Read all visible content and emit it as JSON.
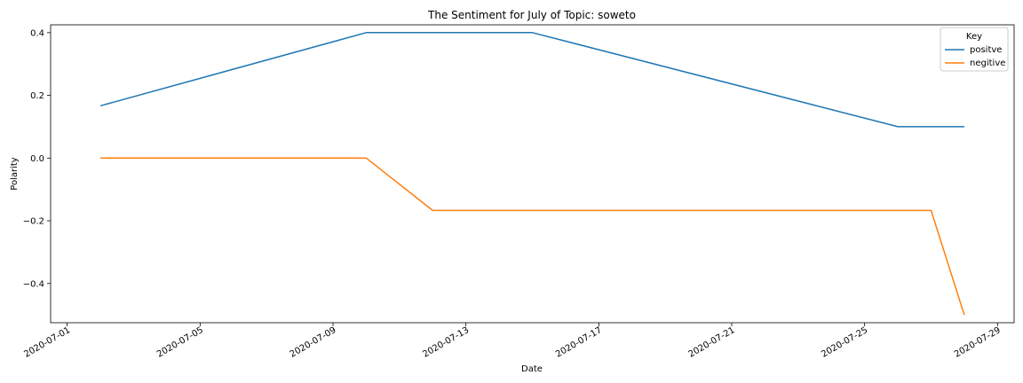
{
  "chart_data": {
    "type": "line",
    "title": "The Sentiment for July of Topic: soweto",
    "xlabel": "Date",
    "ylabel": "Polarity",
    "xlim": [
      "2020-06-30T12:00",
      "2020-07-29T12:00"
    ],
    "ylim": [
      -0.525,
      0.425
    ],
    "xticks": [
      "2020-07-01",
      "2020-07-05",
      "2020-07-09",
      "2020-07-13",
      "2020-07-17",
      "2020-07-21",
      "2020-07-25",
      "2020-07-29"
    ],
    "yticks": [
      -0.4,
      -0.2,
      0.0,
      0.2,
      0.4
    ],
    "ytick_labels": [
      "−0.4",
      "−0.2",
      "0.0",
      "0.2",
      "0.4"
    ],
    "grid": false,
    "legend": {
      "title": "Key",
      "placement": "top-right"
    },
    "series": [
      {
        "name": "positve",
        "color": "#1f77b4",
        "points": [
          {
            "x": "2020-07-02",
            "y": 0.167
          },
          {
            "x": "2020-07-10",
            "y": 0.4
          },
          {
            "x": "2020-07-15",
            "y": 0.4
          },
          {
            "x": "2020-07-26",
            "y": 0.1
          },
          {
            "x": "2020-07-28",
            "y": 0.1
          }
        ]
      },
      {
        "name": "negitive",
        "color": "#ff7f0e",
        "points": [
          {
            "x": "2020-07-02",
            "y": 0.0
          },
          {
            "x": "2020-07-10",
            "y": 0.0
          },
          {
            "x": "2020-07-12",
            "y": -0.167
          },
          {
            "x": "2020-07-27",
            "y": -0.167
          },
          {
            "x": "2020-07-28",
            "y": -0.5
          }
        ]
      }
    ]
  }
}
